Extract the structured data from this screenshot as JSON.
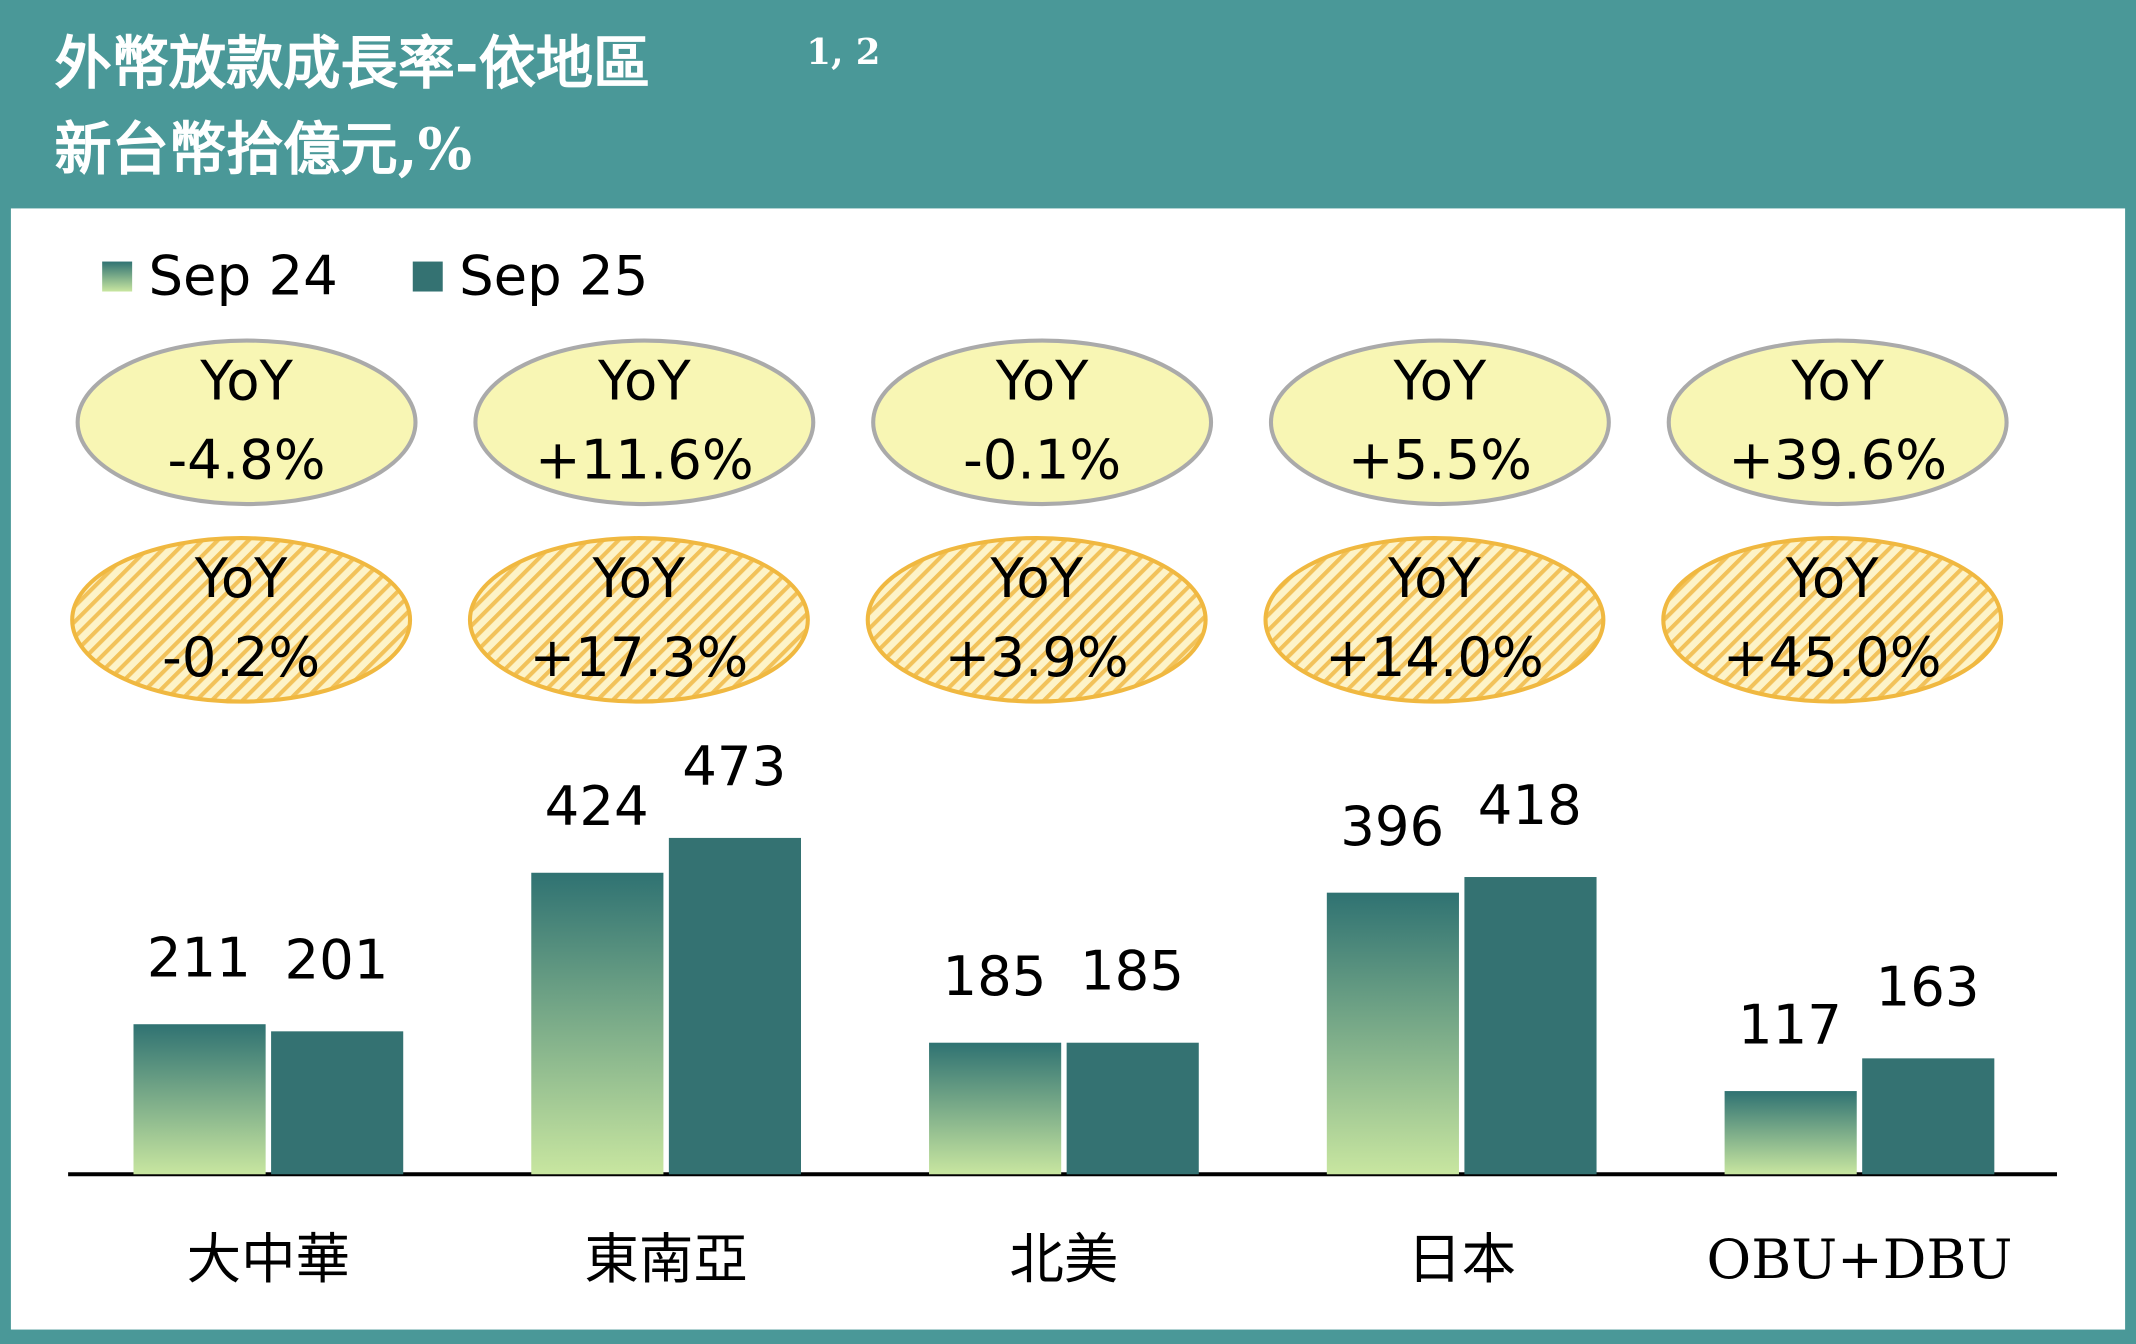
{
  "chart_data": {
    "type": "bar",
    "title": "外幣放款成長率-依地區",
    "title_superscript": "1, 2",
    "subtitle": "新台幣拾億元,%",
    "categories": [
      "大中華",
      "東南亞",
      "北美",
      "日本",
      "OBU+DBU"
    ],
    "series": [
      {
        "name": "Sep 24",
        "color": "#2f7272",
        "gradient_bottom": "#c8e6a0",
        "values": [
          211,
          424,
          185,
          396,
          117
        ]
      },
      {
        "name": "Sep 25",
        "color": "#347272",
        "values": [
          201,
          473,
          185,
          418,
          163
        ]
      }
    ],
    "yoy_label": "YoY",
    "yoy_rows": [
      {
        "style": "solid",
        "values": [
          "-4.8%",
          "+11.6%",
          "-0.1%",
          "+5.5%",
          "+39.6%"
        ]
      },
      {
        "style": "hatched",
        "values": [
          "-0.2%",
          "+17.3%",
          "+3.9%",
          "+14.0%",
          "+45.0%"
        ]
      }
    ]
  }
}
